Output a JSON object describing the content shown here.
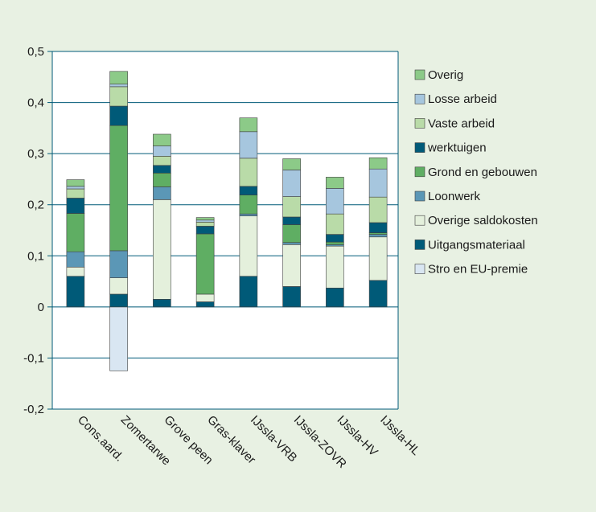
{
  "chart_data": {
    "type": "bar",
    "stacked": true,
    "categories": [
      "Cons.aard.",
      "Zomertarwe",
      "Grove peen",
      "Gras-klaver",
      "IJssla-VRB",
      "IJssla-ZOVR",
      "IJssla-HV",
      "IJssla-HL"
    ],
    "ylim": [
      -0.2,
      0.5
    ],
    "yticks": [
      "0,5",
      "0,4",
      "0,3",
      "0,2",
      "0,1",
      "0",
      "-0,1",
      "-0,2"
    ],
    "ytick_values": [
      0.5,
      0.4,
      0.3,
      0.2,
      0.1,
      0,
      -0.1,
      -0.2
    ],
    "grid": true,
    "legend_position": "right",
    "series": [
      {
        "name": "Stro en EU-premie",
        "color": "#d9e6f2",
        "values": [
          0,
          -0.125,
          0,
          0,
          0,
          0,
          0,
          0
        ]
      },
      {
        "name": "Uitgangsmateriaal",
        "color": "#005a78",
        "values": [
          0.06,
          0.025,
          0.015,
          0.01,
          0.06,
          0.04,
          0.037,
          0.052
        ]
      },
      {
        "name": "Overige saldokosten",
        "color": "#e4f0dc",
        "values": [
          0.018,
          0.032,
          0.195,
          0.015,
          0.118,
          0.082,
          0.082,
          0.085
        ]
      },
      {
        "name": "Loonwerk",
        "color": "#5b97b6",
        "values": [
          0.03,
          0.053,
          0.025,
          0,
          0.004,
          0.004,
          0.003,
          0.005
        ]
      },
      {
        "name": "Grond en gebouwen",
        "color": "#5fae63",
        "values": [
          0.075,
          0.245,
          0.027,
          0.118,
          0.037,
          0.035,
          0.005,
          0.003
        ]
      },
      {
        "name": "werktuigen",
        "color": "#005a78",
        "values": [
          0.03,
          0.038,
          0.015,
          0.015,
          0.017,
          0.015,
          0.015,
          0.02
        ]
      },
      {
        "name": "Vaste arbeid",
        "color": "#b9dba8",
        "values": [
          0.018,
          0.038,
          0.018,
          0.008,
          0.055,
          0.04,
          0.04,
          0.05
        ]
      },
      {
        "name": "Losse arbeid",
        "color": "#a6c6de",
        "values": [
          0.005,
          0.005,
          0.02,
          0.004,
          0.052,
          0.052,
          0.05,
          0.055
        ]
      },
      {
        "name": "Overig",
        "color": "#8cca88",
        "values": [
          0.013,
          0.025,
          0.023,
          0.005,
          0.027,
          0.022,
          0.022,
          0.022
        ]
      }
    ],
    "legend_order": [
      "Overig",
      "Losse arbeid",
      "Vaste arbeid",
      "werktuigen",
      "Grond en gebouwen",
      "Loonwerk",
      "Overige saldokosten",
      "Uitgangsmateriaal",
      "Stro en EU-premie"
    ],
    "colors": {
      "plot_bg": "#ffffff",
      "page_bg": "#e8f1e3",
      "grid": "#005a78",
      "bar_stroke": "#404040"
    }
  }
}
